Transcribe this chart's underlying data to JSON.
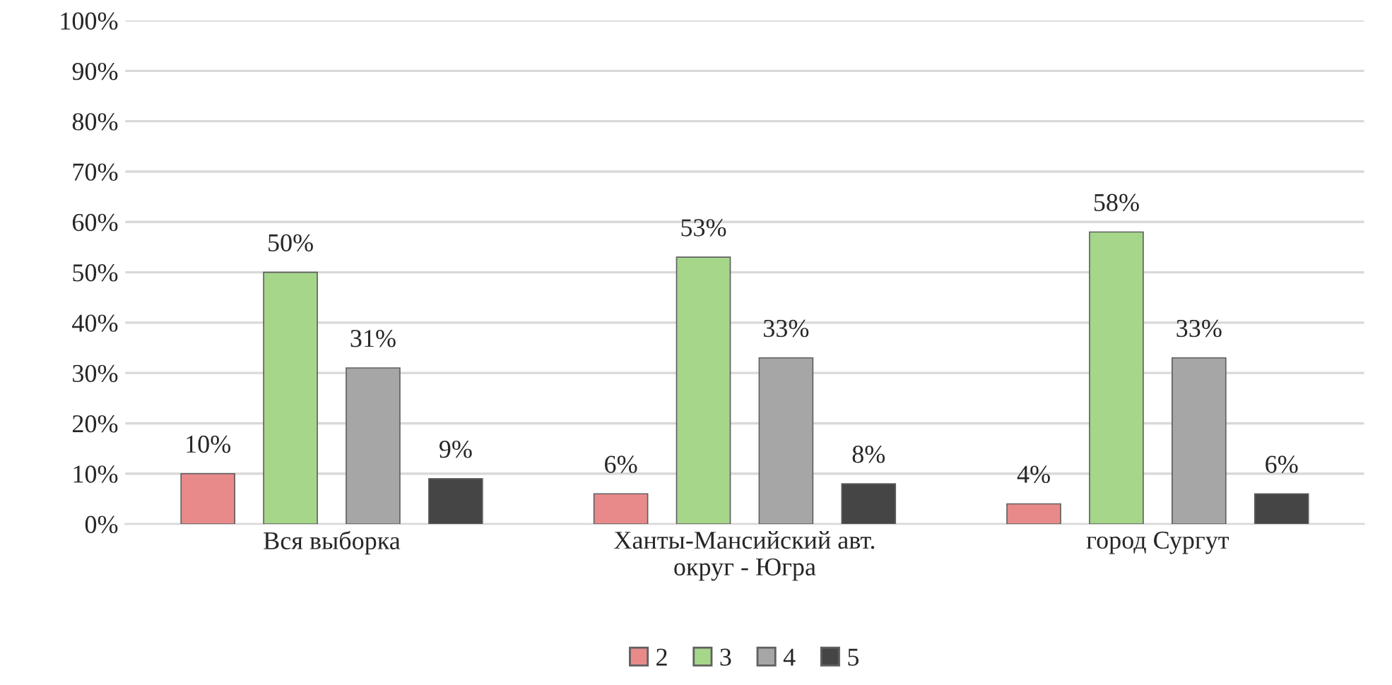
{
  "chart_data": {
    "type": "bar",
    "categories": [
      "Вся выборка",
      "Ханты-Мансийский авт.\nокруг - Югра",
      "город Сургут"
    ],
    "series": [
      {
        "name": "2",
        "color": "#e88a8a",
        "values": [
          10,
          6,
          4
        ]
      },
      {
        "name": "3",
        "color": "#a6d68a",
        "values": [
          50,
          53,
          58
        ]
      },
      {
        "name": "4",
        "color": "#a6a6a6",
        "values": [
          31,
          33,
          33
        ]
      },
      {
        "name": "5",
        "color": "#454545",
        "values": [
          9,
          8,
          6
        ]
      }
    ],
    "ylim": [
      0,
      100
    ],
    "yticks": [
      {
        "value": 0,
        "label": "0%"
      },
      {
        "value": 10,
        "label": "10%"
      },
      {
        "value": 20,
        "label": "20%"
      },
      {
        "value": 30,
        "label": "30%"
      },
      {
        "value": 40,
        "label": "40%"
      },
      {
        "value": 50,
        "label": "50%"
      },
      {
        "value": 60,
        "label": "60%"
      },
      {
        "value": 70,
        "label": "70%"
      },
      {
        "value": 80,
        "label": "80%"
      },
      {
        "value": 90,
        "label": "90%"
      },
      {
        "value": 100,
        "label": "100%"
      }
    ],
    "value_labels": [
      [
        "10%",
        "6%",
        "4%"
      ],
      [
        "50%",
        "53%",
        "58%"
      ],
      [
        "31%",
        "33%",
        "33%"
      ],
      [
        "9%",
        "8%",
        "6%"
      ]
    ],
    "grid": "y",
    "legend": "bottom"
  }
}
